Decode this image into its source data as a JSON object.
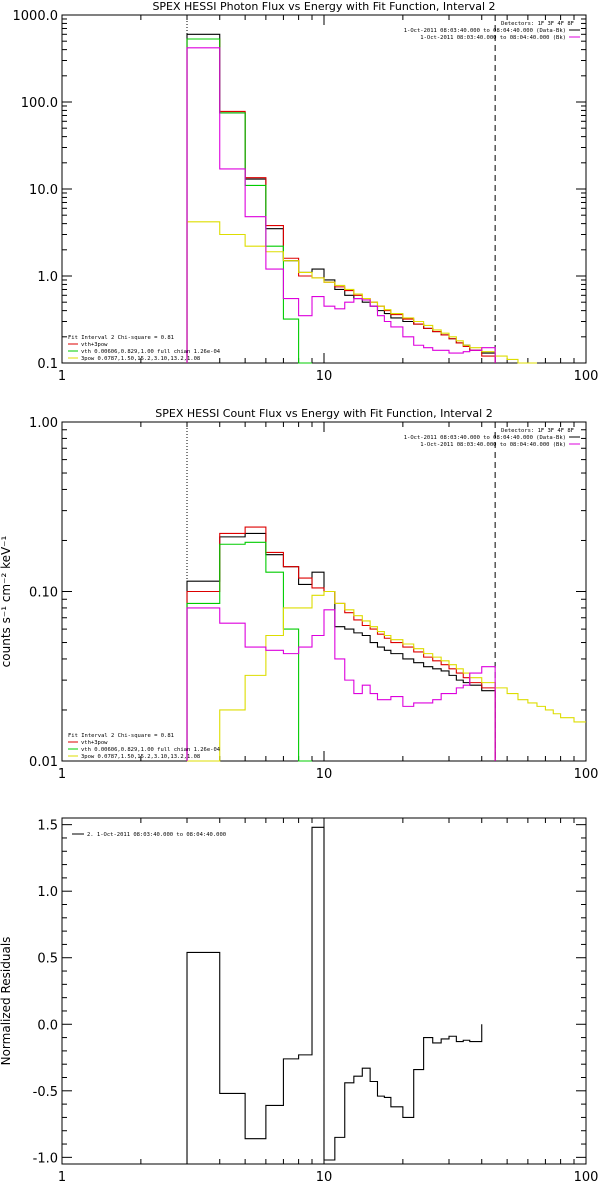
{
  "chart_data": [
    {
      "type": "line",
      "title": "SPEX HESSI Photon Flux vs Energy with Fit Function, Interval 2",
      "xscale": "log",
      "yscale": "log",
      "xlim": [
        1,
        100
      ],
      "ylim": [
        0.1,
        1000
      ],
      "xtick_labels": [
        "1",
        "10",
        "100"
      ],
      "ytick_labels": [
        "0.1",
        "1.0",
        "10.0",
        "100.0",
        "1000.0"
      ],
      "vlines": [
        {
          "x": 3,
          "style": "dotted"
        },
        {
          "x": 45,
          "style": "dashed"
        }
      ],
      "legend_right": [
        "Detectors: 1F 3F 4F 8F",
        "1-Oct-2011 08:03:40.000 to 08:04:40.000 (Data-Bk)",
        "1-Oct-2011 08:03:40.000 to 08:04:40.000 (Bk)"
      ],
      "legend_left": [
        "Fit Interval 2   Chi-square = 0.81",
        "vth+3pow",
        "vth 0.00606,0.829,1.00   full chian 1.26e-04",
        "3pow 0.0787,1.50,15.2,3.10,13.2,1.08"
      ],
      "edges": [
        3,
        4,
        5,
        6,
        7,
        8,
        9,
        10,
        11,
        12,
        13,
        14,
        15,
        16,
        17,
        18,
        20,
        22,
        24,
        26,
        28,
        30,
        32,
        34,
        36,
        40,
        45,
        50,
        55,
        60,
        65
      ],
      "series": [
        {
          "name": "Data-Bk",
          "color": "#000000",
          "values": [
            600,
            75,
            13,
            3.5,
            1.5,
            1.1,
            1.2,
            0.9,
            0.7,
            0.6,
            0.55,
            0.5,
            0.45,
            0.4,
            0.37,
            0.33,
            0.3,
            0.28,
            0.25,
            0.23,
            0.21,
            0.19,
            0.17,
            0.16,
            0.14,
            0.13
          ]
        },
        {
          "name": "vth+3pow",
          "color": "#dd0000",
          "values": [
            530,
            78,
            13.5,
            3.8,
            1.6,
            1.0,
            0.95,
            0.85,
            0.75,
            0.68,
            0.6,
            0.55,
            0.5,
            0.45,
            0.4,
            0.36,
            0.32,
            0.28,
            0.25,
            0.23,
            0.21,
            0.19,
            0.17,
            0.155,
            0.14,
            0.12
          ]
        },
        {
          "name": "vth",
          "color": "#00cc00",
          "values": [
            530,
            75,
            11,
            2.2,
            0.32,
            0.05
          ]
        },
        {
          "name": "3pow",
          "color": "#dddd00",
          "values": [
            4.2,
            3.0,
            2.2,
            1.9,
            1.5,
            1.1,
            0.95,
            0.85,
            0.78,
            0.7,
            0.62,
            0.55,
            0.5,
            0.45,
            0.41,
            0.37,
            0.33,
            0.3,
            0.27,
            0.24,
            0.22,
            0.2,
            0.18,
            0.16,
            0.15,
            0.135,
            0.12,
            0.11,
            0.1,
            0.09
          ]
        },
        {
          "name": "Bk",
          "color": "#dd00dd",
          "values": [
            420,
            17,
            4.8,
            1.2,
            0.55,
            0.35,
            0.58,
            0.45,
            0.42,
            0.5,
            0.55,
            0.53,
            0.45,
            0.35,
            0.3,
            0.26,
            0.2,
            0.16,
            0.15,
            0.14,
            0.14,
            0.13,
            0.13,
            0.135,
            0.14,
            0.15
          ]
        }
      ]
    },
    {
      "type": "line",
      "title": "SPEX HESSI Count Flux vs Energy with Fit Function, Interval 2",
      "ylabel": "counts s⁻¹ cm⁻² keV⁻¹",
      "xscale": "log",
      "yscale": "log",
      "xlim": [
        1,
        100
      ],
      "ylim": [
        0.01,
        1.0
      ],
      "xtick_labels": [
        "1",
        "10",
        "100"
      ],
      "ytick_labels": [
        "0.01",
        "0.10",
        "1.00"
      ],
      "vlines": [
        {
          "x": 3,
          "style": "dotted"
        },
        {
          "x": 45,
          "style": "dashed"
        }
      ],
      "legend_right": [
        "Detectors: 1F 3F 4F 8F",
        "1-Oct-2011 08:03:40.000 to 08:04:40.000 (Data-Bk)",
        "1-Oct-2011 08:03:40.000 to 08:04:40.000 (Bk)"
      ],
      "legend_left": [
        "Fit Interval 2   Chi-square = 0.81",
        "vth+3pow",
        "vth 0.00606,0.829,1.00   full chian 1.26e-04",
        "3pow 0.0787,1.50,15.2,3.10,13.2,1.08"
      ],
      "edges": [
        3,
        4,
        5,
        6,
        7,
        8,
        9,
        10,
        11,
        12,
        13,
        14,
        15,
        16,
        17,
        18,
        20,
        22,
        24,
        26,
        28,
        30,
        32,
        34,
        36,
        40,
        45,
        50,
        55,
        60,
        65,
        70,
        75,
        80,
        90,
        100
      ],
      "series": [
        {
          "name": "Data-Bk",
          "color": "#000000",
          "values": [
            0.115,
            0.21,
            0.22,
            0.165,
            0.14,
            0.11,
            0.13,
            0.1,
            0.062,
            0.06,
            0.057,
            0.055,
            0.05,
            0.047,
            0.045,
            0.043,
            0.04,
            0.038,
            0.036,
            0.035,
            0.034,
            0.032,
            0.03,
            0.029,
            0.028,
            0.026
          ]
        },
        {
          "name": "vth+3pow",
          "color": "#dd0000",
          "values": [
            0.1,
            0.22,
            0.24,
            0.17,
            0.14,
            0.12,
            0.105,
            0.1,
            0.085,
            0.075,
            0.068,
            0.063,
            0.06,
            0.056,
            0.053,
            0.05,
            0.047,
            0.044,
            0.041,
            0.039,
            0.037,
            0.035,
            0.033,
            0.031,
            0.029,
            0.027
          ]
        },
        {
          "name": "vth",
          "color": "#00cc00",
          "values": [
            0.085,
            0.19,
            0.195,
            0.13,
            0.06,
            0.002
          ]
        },
        {
          "name": "3pow",
          "color": "#dddd00",
          "values": [
            0.003,
            0.02,
            0.032,
            0.055,
            0.08,
            0.08,
            0.095,
            0.1,
            0.085,
            0.078,
            0.072,
            0.067,
            0.062,
            0.058,
            0.055,
            0.052,
            0.049,
            0.046,
            0.043,
            0.041,
            0.039,
            0.037,
            0.035,
            0.033,
            0.031,
            0.029,
            0.027,
            0.025,
            0.023,
            0.022,
            0.021,
            0.02,
            0.019,
            0.018,
            0.017
          ]
        },
        {
          "name": "Bk",
          "color": "#dd00dd",
          "values": [
            0.08,
            0.065,
            0.047,
            0.045,
            0.043,
            0.047,
            0.055,
            0.078,
            0.04,
            0.03,
            0.025,
            0.028,
            0.025,
            0.023,
            0.023,
            0.024,
            0.021,
            0.022,
            0.022,
            0.023,
            0.025,
            0.025,
            0.027,
            0.028,
            0.033,
            0.036
          ]
        }
      ]
    },
    {
      "type": "line",
      "ylabel": "Normalized Residuals",
      "xscale": "log",
      "yscale": "linear",
      "xlim": [
        1,
        100
      ],
      "ylim": [
        -1.05,
        1.55
      ],
      "xtick_labels": [
        "1",
        "10",
        "100"
      ],
      "yticks": [
        -1.0,
        -0.5,
        0.0,
        0.5,
        1.0,
        1.5
      ],
      "ytick_labels": [
        "-1.0",
        "-0.5",
        "0.0",
        "0.5",
        "1.0",
        "1.5"
      ],
      "legend": [
        "2.  1-Oct-2011 08:03:40.000 to 08:04:40.000"
      ],
      "edges": [
        3,
        4,
        5,
        6,
        7,
        8,
        9,
        10,
        11,
        12,
        13,
        14,
        15,
        16,
        17,
        18,
        20,
        22,
        24,
        26,
        28,
        30,
        32,
        34,
        36,
        40,
        45
      ],
      "series": [
        {
          "name": "Residuals",
          "color": "#000000",
          "values": [
            0.54,
            -0.52,
            -0.86,
            -0.61,
            -0.26,
            -0.23,
            1.48,
            -1.02,
            -0.85,
            -0.44,
            -0.39,
            -0.33,
            -0.43,
            -0.54,
            -0.55,
            -0.62,
            -0.7,
            -0.34,
            -0.1,
            -0.14,
            -0.11,
            -0.09,
            -0.13,
            -0.12,
            -0.13
          ]
        }
      ]
    }
  ]
}
